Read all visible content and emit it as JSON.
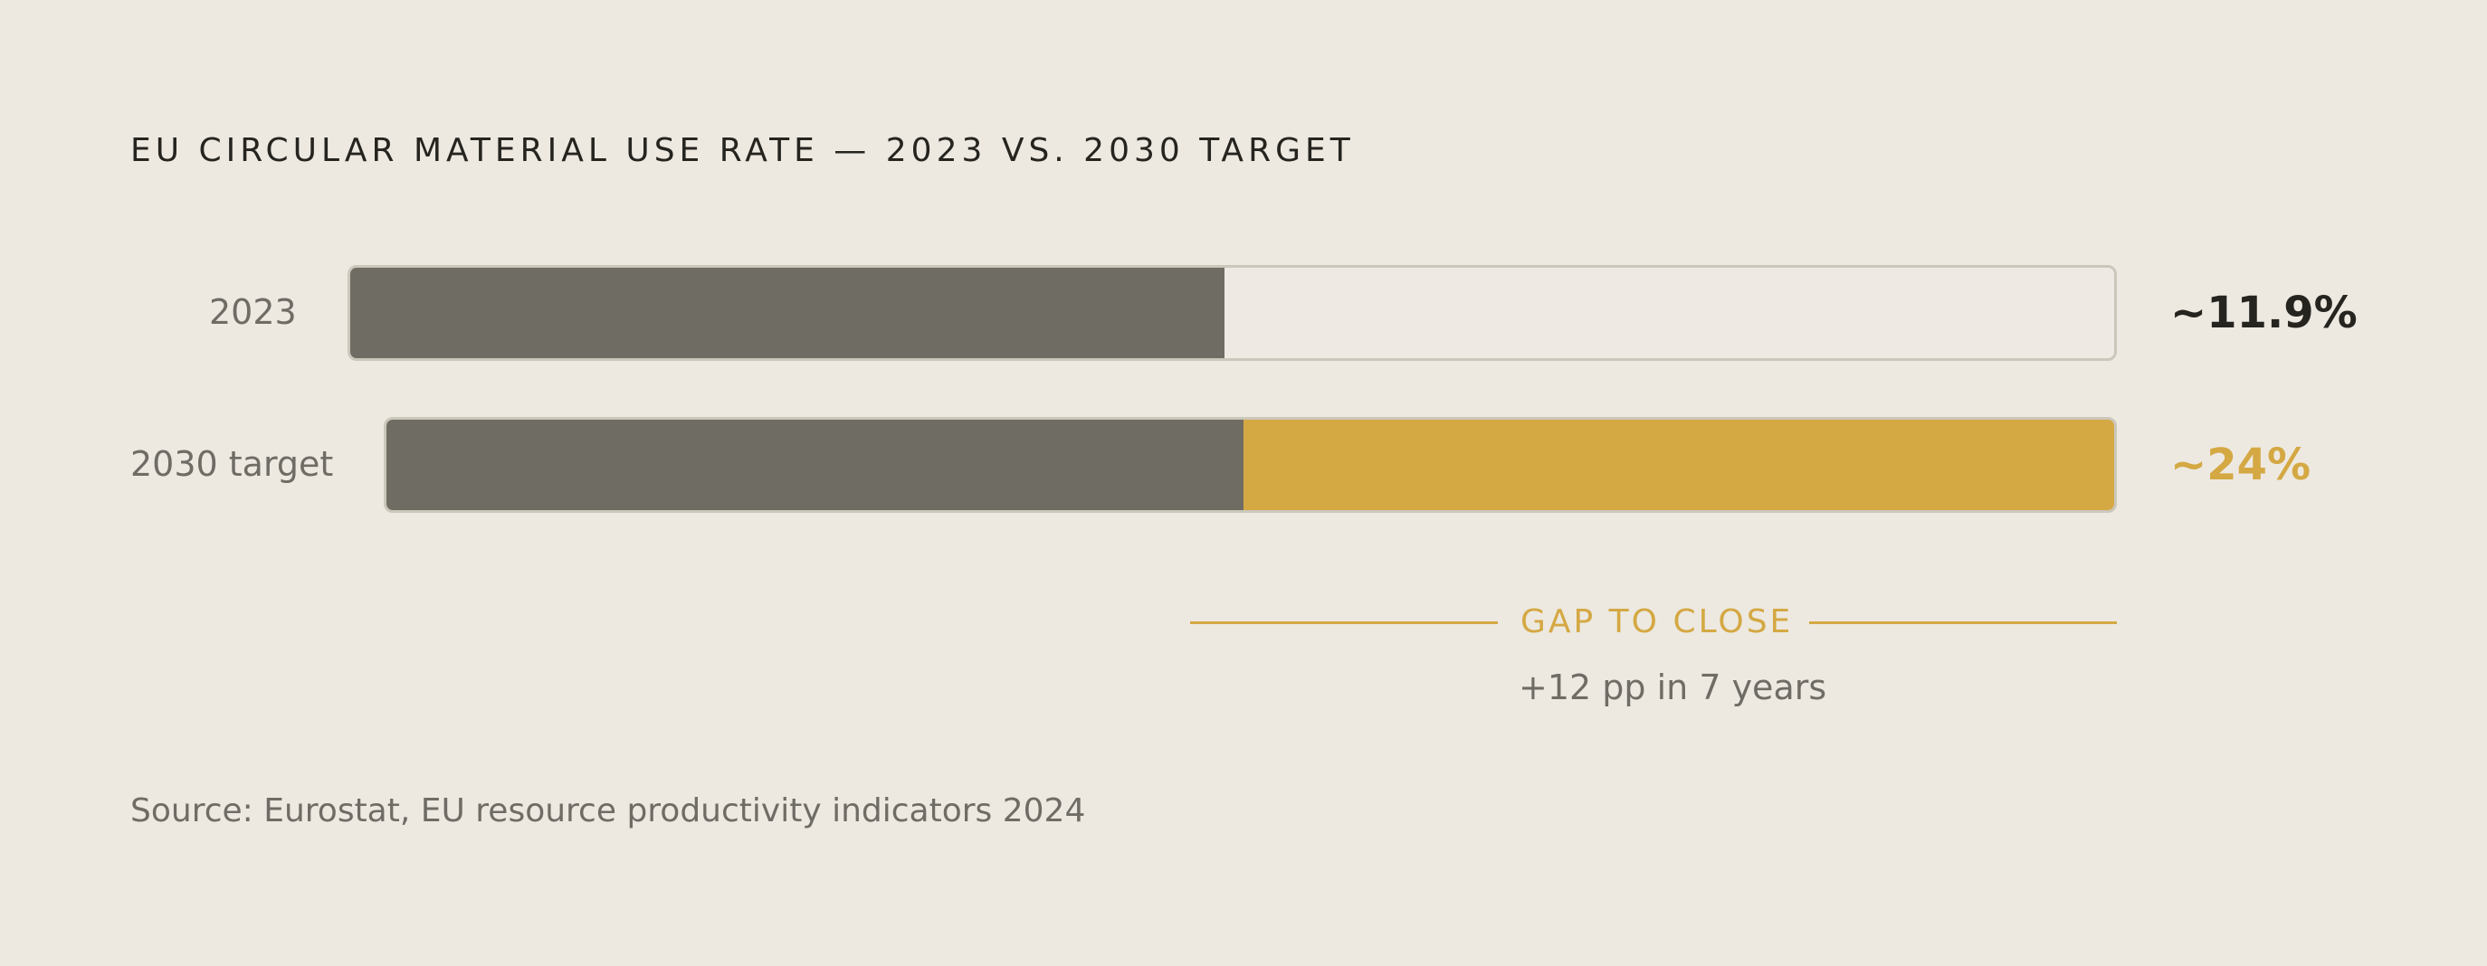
{
  "colors": {
    "background": "#ede9e1",
    "baseline_fill": "#6f6c63",
    "gap_fill": "#d4a843",
    "track_border": "#cbc7bb",
    "text_dark": "#26241f",
    "text_muted": "#6f6c66"
  },
  "chart_data": {
    "type": "bar",
    "orientation": "horizontal",
    "title": "EU CIRCULAR MATERIAL USE RATE — 2023 VS. 2030 TARGET",
    "categories": [
      "2023",
      "2030 target"
    ],
    "values": [
      11.9,
      24
    ],
    "value_labels": [
      "~11.9%",
      "~24%"
    ],
    "segments": [
      {
        "category": "2023",
        "current": 11.9,
        "gap": 0
      },
      {
        "category": "2030 target",
        "current": 11.9,
        "gap": 12.1
      }
    ],
    "scale_max": 24,
    "unit": "%",
    "annotation": {
      "label": "GAP TO CLOSE",
      "detail": "+12 pp in 7 years"
    },
    "source": "Source: Eurostat, EU resource productivity indicators 2024"
  }
}
